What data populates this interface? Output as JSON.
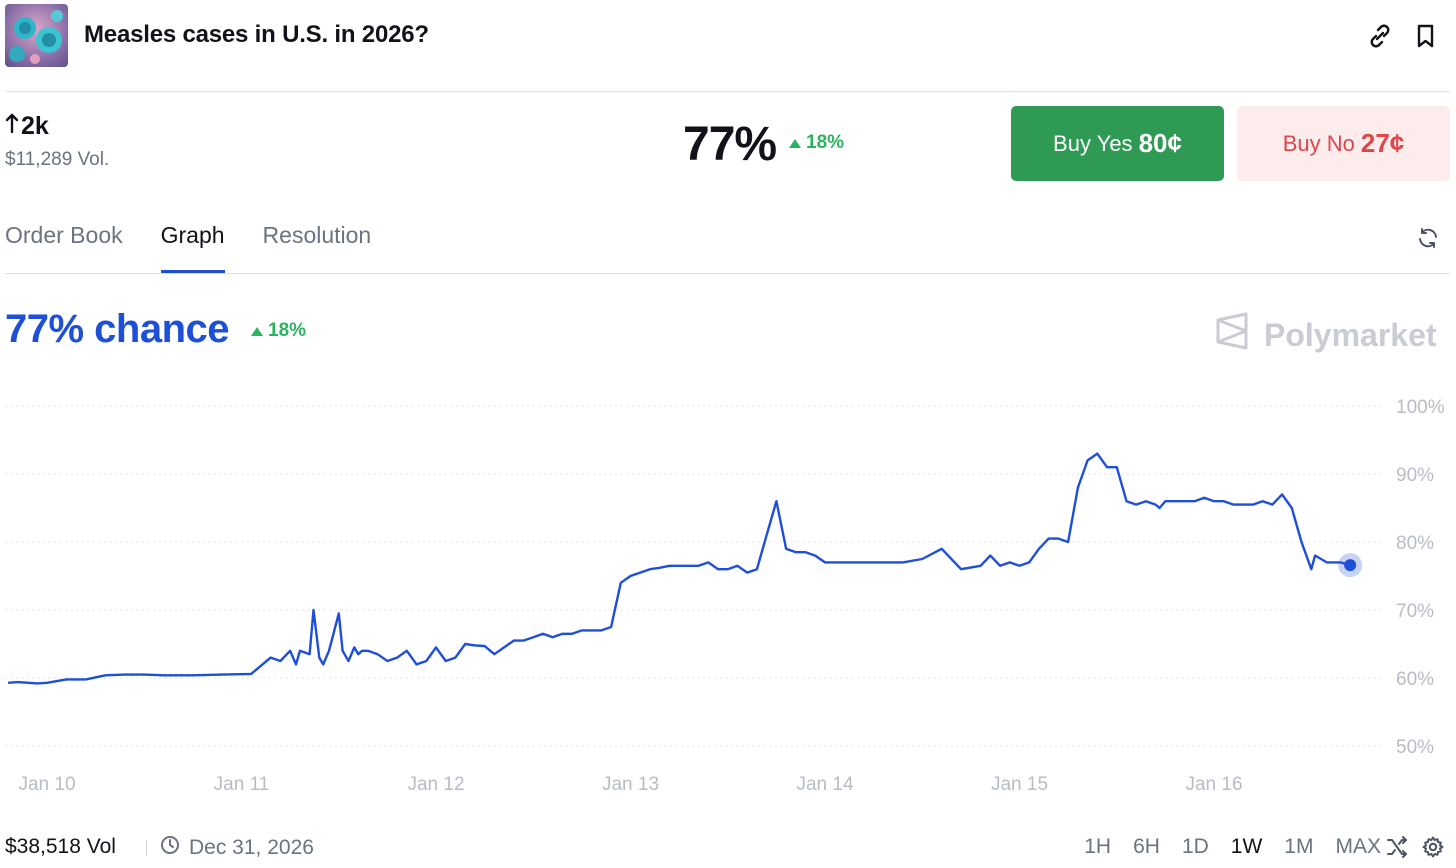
{
  "header": {
    "title": "Measles cases in U.S. in 2026?",
    "thumbnail_icon": "virus-illustration-thumbnail",
    "link_icon": "link-icon",
    "bookmark_icon": "bookmark-icon"
  },
  "stats": {
    "traders": "2k",
    "traders_icon": "arrow-up-icon",
    "volume": "$11,289 Vol."
  },
  "price": {
    "probability": "77%",
    "change": "18%",
    "change_direction": "up"
  },
  "buttons": {
    "yes_label": "Buy Yes",
    "yes_price": "80¢",
    "no_label": "Buy No",
    "no_price": "27¢"
  },
  "tabs": [
    {
      "label": "Order Book",
      "active": false
    },
    {
      "label": "Graph",
      "active": true
    },
    {
      "label": "Resolution",
      "active": false
    }
  ],
  "chart_header": {
    "chance_label": "77% chance",
    "change": "18%",
    "watermark": "Polymarket"
  },
  "colors": {
    "line": "#1e4fd8",
    "positive": "#2bb45f",
    "yes_button": "#2e9a54",
    "no_button_bg": "#fdecec",
    "no_button_text": "#e0454a"
  },
  "chart_data": {
    "type": "line",
    "title": "",
    "xlabel": "",
    "ylabel": "",
    "x_tick_labels": [
      "Jan 10",
      "Jan 11",
      "Jan 12",
      "Jan 13",
      "Jan 14",
      "Jan 15",
      "Jan 16"
    ],
    "y_tick_labels": [
      "100%",
      "90%",
      "80%",
      "70%",
      "60%",
      "50%"
    ],
    "ylim": [
      50,
      100
    ],
    "xlim_days": [
      9.8,
      16.75
    ],
    "grid": "horizontal dotted",
    "series": [
      {
        "x": [
          9.8,
          9.85,
          9.95,
          10.0,
          10.1,
          10.2,
          10.3,
          10.4,
          10.5,
          10.6,
          10.75,
          10.9,
          11.05,
          11.15,
          11.2,
          11.25,
          11.28,
          11.3,
          11.35,
          11.37,
          11.4,
          11.42,
          11.45,
          11.5,
          11.52,
          11.55,
          11.58,
          11.6,
          11.62,
          11.65,
          11.7,
          11.75,
          11.8,
          11.85,
          11.9,
          11.95,
          12.0,
          12.05,
          12.1,
          12.15,
          12.2,
          12.25,
          12.3,
          12.35,
          12.4,
          12.45,
          12.5,
          12.55,
          12.6,
          12.65,
          12.7,
          12.75,
          12.8,
          12.85,
          12.9,
          12.95,
          13.0,
          13.05,
          13.1,
          13.15,
          13.2,
          13.25,
          13.3,
          13.35,
          13.4,
          13.45,
          13.5,
          13.55,
          13.6,
          13.65,
          13.7,
          13.75,
          13.8,
          13.85,
          13.9,
          13.95,
          14.0,
          14.05,
          14.08,
          14.1,
          14.12,
          14.15,
          14.2,
          14.3,
          14.4,
          14.5,
          14.6,
          14.7,
          14.8,
          14.85,
          14.9,
          14.95,
          15.0,
          15.05,
          15.1,
          15.15,
          15.2,
          15.25,
          15.3,
          15.35,
          15.4,
          15.45,
          15.5,
          15.55,
          15.6,
          15.65,
          15.7,
          15.72,
          15.75,
          15.8,
          15.85,
          15.9,
          15.95,
          16.0,
          16.05,
          16.1,
          16.15,
          16.2,
          16.25,
          16.3,
          16.35,
          16.4,
          16.45,
          16.5,
          16.52,
          16.55,
          16.58,
          16.6,
          16.62,
          16.65,
          16.7
        ],
        "y": [
          59.3,
          59.4,
          59.2,
          59.3,
          59.8,
          59.8,
          60.4,
          60.5,
          60.5,
          60.4,
          60.4,
          60.5,
          60.6,
          63,
          62.5,
          64,
          62,
          64,
          63.5,
          70,
          63,
          62,
          64,
          69.5,
          64,
          62.5,
          64.5,
          63.5,
          64,
          64,
          63.5,
          62.5,
          63,
          64,
          62,
          62.5,
          64.5,
          62.5,
          63,
          65,
          64.8,
          64.7,
          63.5,
          64.5,
          65.5,
          65.5,
          66,
          66.5,
          66,
          66.5,
          66.5,
          67,
          67,
          67,
          67.5,
          74,
          75,
          75.5,
          76,
          76.2,
          76.5,
          76.5,
          76.5,
          76.5,
          77,
          76,
          76,
          76.5,
          75.5,
          76,
          81,
          86,
          79,
          78.5,
          78.5,
          78,
          77,
          77,
          77,
          77,
          77,
          77,
          77,
          77,
          77,
          77.5,
          79,
          76,
          76.5,
          78,
          76.5,
          77,
          76.5,
          77,
          79,
          80.5,
          80.5,
          80,
          88,
          92,
          93,
          91,
          91,
          86,
          85.5,
          86,
          85.5,
          85,
          86,
          86,
          86,
          86,
          86.5,
          86,
          86,
          85.5,
          85.5,
          85.5,
          86,
          85.5,
          87,
          85,
          80,
          76,
          78,
          77.5,
          77,
          77,
          77,
          77,
          76.6
        ],
        "last_point_marker": true
      }
    ]
  },
  "footer": {
    "volume": "$38,518 Vol",
    "end_date": "Dec 31, 2026",
    "clock_icon": "clock-icon",
    "ranges": [
      {
        "label": "1H",
        "active": false
      },
      {
        "label": "6H",
        "active": false
      },
      {
        "label": "1D",
        "active": false
      },
      {
        "label": "1W",
        "active": true
      },
      {
        "label": "1M",
        "active": false
      },
      {
        "label": "MAX",
        "active": false
      }
    ],
    "shuffle_icon": "shuffle-icon",
    "settings_icon": "settings-icon"
  }
}
